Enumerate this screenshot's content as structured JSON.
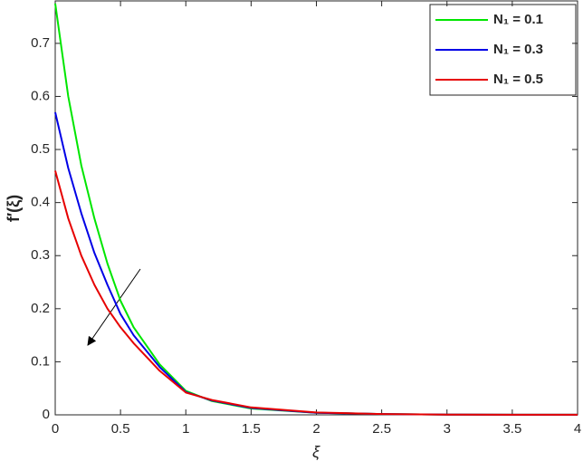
{
  "chart_data": {
    "type": "line",
    "x_label": "ξ",
    "y_label": "f′(ξ)",
    "x": [
      0,
      0.1,
      0.2,
      0.3,
      0.4,
      0.5,
      0.6,
      0.8,
      1,
      1.2,
      1.5,
      2,
      2.5,
      3,
      3.5,
      4
    ],
    "series": [
      {
        "name": "N₁ = 0.1",
        "color": "#00e600",
        "values": [
          0.775,
          0.6,
          0.47,
          0.37,
          0.285,
          0.215,
          0.165,
          0.095,
          0.045,
          0.026,
          0.012,
          0.004,
          0.0015,
          0.0005,
          0.0002,
          0.0001
        ]
      },
      {
        "name": "N₁ = 0.3",
        "color": "#0000e6",
        "values": [
          0.57,
          0.465,
          0.38,
          0.305,
          0.245,
          0.19,
          0.15,
          0.09,
          0.043,
          0.027,
          0.013,
          0.004,
          0.0015,
          0.0005,
          0.0002,
          0.0001
        ]
      },
      {
        "name": "N₁ = 0.5",
        "color": "#e60000",
        "values": [
          0.46,
          0.37,
          0.3,
          0.245,
          0.2,
          0.165,
          0.135,
          0.083,
          0.042,
          0.028,
          0.014,
          0.0045,
          0.0016,
          0.0005,
          0.0002,
          0.0001
        ]
      }
    ],
    "xlim": [
      0,
      4
    ],
    "ylim": [
      0,
      0.78
    ],
    "xticks": [
      0,
      0.5,
      1,
      1.5,
      2,
      2.5,
      3,
      3.5,
      4
    ],
    "yticks": [
      0,
      0.1,
      0.2,
      0.3,
      0.4,
      0.5,
      0.6,
      0.7
    ],
    "legend": "top-right"
  }
}
